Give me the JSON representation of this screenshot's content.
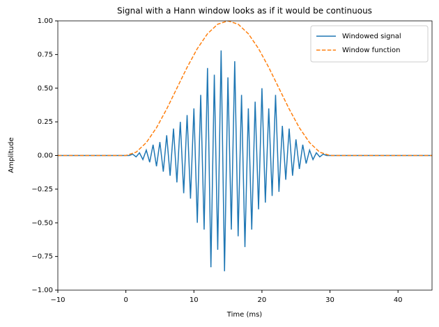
{
  "chart_data": {
    "type": "line",
    "title": "Signal with a Hann window looks as if it would be continuous",
    "xlabel": "Time (ms)",
    "ylabel": "Amplitude",
    "xlim": [
      -10,
      45
    ],
    "xticks": [
      {
        "value": -10,
        "label": "−10"
      },
      0,
      10,
      20,
      30,
      40
    ],
    "ylim": [
      -1,
      1
    ],
    "yticks": [
      {
        "value": -1,
        "label": "−1.00"
      },
      {
        "value": -0.75,
        "label": "−0.75"
      },
      {
        "value": -0.5,
        "label": "−0.50"
      },
      {
        "value": -0.25,
        "label": "−0.25"
      },
      {
        "value": 0,
        "label": "0.00"
      },
      {
        "value": 0.25,
        "label": "0.25"
      },
      {
        "value": 0.5,
        "label": "0.50"
      },
      {
        "value": 0.75,
        "label": "0.75"
      },
      {
        "value": 1,
        "label": "1.00"
      }
    ],
    "grid": false,
    "legend": "upper right",
    "series": [
      {
        "name": "Windowed signal",
        "color": "#1f77b4",
        "linestyle": "solid",
        "x": [
          -10,
          0,
          0.5,
          1,
          1.5,
          2,
          2.5,
          3,
          3.5,
          4,
          4.5,
          5,
          5.5,
          6,
          6.5,
          7,
          7.5,
          8,
          8.5,
          9,
          9.5,
          10,
          10.5,
          11,
          11.5,
          12,
          12.5,
          13,
          13.5,
          14,
          14.5,
          15,
          15.5,
          16,
          16.5,
          17,
          17.5,
          18,
          18.5,
          19,
          19.5,
          20,
          20.5,
          21,
          21.5,
          22,
          22.5,
          23,
          23.5,
          24,
          24.5,
          25,
          25.5,
          26,
          26.5,
          27,
          27.5,
          28,
          28.5,
          29,
          29.5,
          30,
          45
        ],
        "values": [
          0,
          0,
          0,
          0.01,
          -0.01,
          0.02,
          -0.03,
          0.04,
          -0.05,
          0.08,
          -0.08,
          0.1,
          -0.12,
          0.15,
          -0.15,
          0.2,
          -0.2,
          0.25,
          -0.28,
          0.3,
          -0.32,
          0.35,
          -0.5,
          0.45,
          -0.55,
          0.65,
          -0.83,
          0.6,
          -0.7,
          0.78,
          -0.86,
          0.58,
          -0.55,
          0.7,
          -0.6,
          0.45,
          -0.68,
          0.35,
          -0.55,
          0.4,
          -0.4,
          0.5,
          -0.35,
          0.35,
          -0.3,
          0.45,
          -0.27,
          0.22,
          -0.18,
          0.2,
          -0.15,
          0.12,
          -0.1,
          0.08,
          -0.06,
          0.04,
          -0.03,
          0.02,
          -0.01,
          0.01,
          0,
          0,
          0
        ]
      },
      {
        "name": "Window function",
        "color": "#ff7f0e",
        "linestyle": "dashed",
        "x": [
          -10,
          0,
          1.5,
          3,
          4.5,
          6,
          7.5,
          9,
          10.5,
          12,
          13.5,
          15,
          16.5,
          18,
          19.5,
          21,
          22.5,
          24,
          25.5,
          27,
          28.5,
          30,
          45
        ],
        "values": [
          0,
          0,
          0.0245,
          0.0955,
          0.2061,
          0.3455,
          0.5,
          0.6545,
          0.7939,
          0.9045,
          0.9755,
          1,
          0.9755,
          0.9045,
          0.7939,
          0.6545,
          0.5,
          0.3455,
          0.2061,
          0.0955,
          0.0245,
          0,
          0
        ]
      }
    ]
  }
}
